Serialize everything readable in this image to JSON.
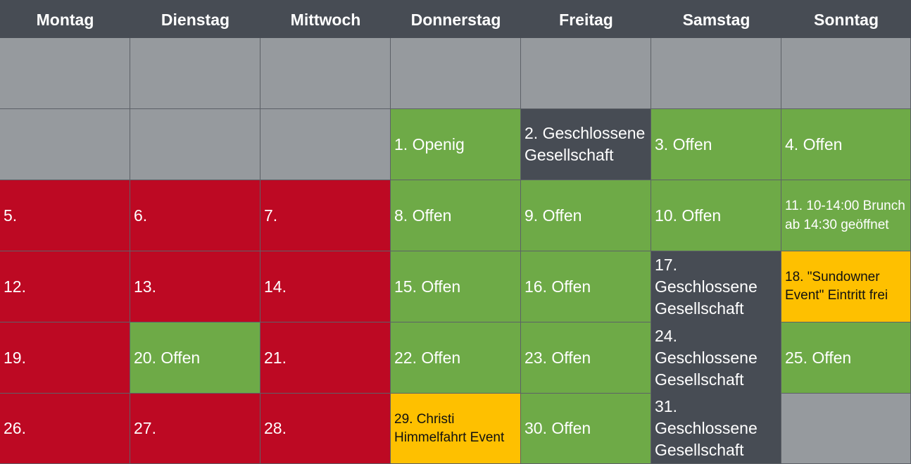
{
  "days": [
    "Montag",
    "Dienstag",
    "Mittwoch",
    "Donnerstag",
    "Freitag",
    "Samstag",
    "Sonntag"
  ],
  "colors": {
    "header": "#474c54",
    "empty": "#969a9e",
    "closed_red": "#bd0923",
    "open_green": "#6eaa47",
    "private_dark": "#474c54",
    "event_yellow": "#fec000"
  },
  "cells": {
    "d1": "1. Openig",
    "d2": "2. Geschlossene Gesellschaft",
    "d3": "3. Offen",
    "d4": "4. Offen",
    "d5": "5.",
    "d6": "6.",
    "d7": "7.",
    "d8": "8. Offen",
    "d9": "9. Offen",
    "d10": "10. Offen",
    "d11": "11. 10-14:00 Brunch ab 14:30 geöffnet",
    "d12": "12.",
    "d13": "13.",
    "d14": "14.",
    "d15": "15. Offen",
    "d16": "16. Offen",
    "d17": "17. Geschlossene Gesellschaft",
    "d18": "18.  \"Sundowner Event\" Eintritt frei",
    "d19": "19.",
    "d20": "20. Offen",
    "d21": "21.",
    "d22": "22. Offen",
    "d23": "23. Offen",
    "d24": "24. Geschlossene Gesellschaft",
    "d25": "25. Offen",
    "d26": "26.",
    "d27": "27.",
    "d28": "28.",
    "d29": "29. Christi Himmelfahrt Event",
    "d30": "30. Offen",
    "d31": "31. Geschlossene Gesellschaft"
  }
}
